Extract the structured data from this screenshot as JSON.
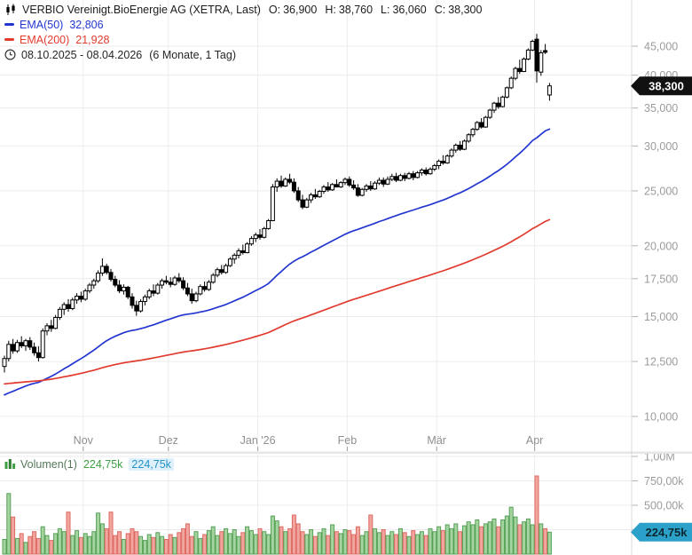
{
  "header": {
    "title": "VERBIO Vereinigt.BioEnergie AG (XETRA, Last)",
    "ohlc": {
      "o_label": "O:",
      "o": "36,900",
      "h_label": "H:",
      "h": "38,760",
      "l_label": "L:",
      "l": "36,060",
      "c_label": "C:",
      "c": "38,300"
    },
    "indicators": [
      {
        "name": "EMA(50)",
        "value": "32,806"
      },
      {
        "name": "EMA(200)",
        "value": "21,928"
      }
    ],
    "date_range": "08.10.2025 - 08.04.2026",
    "period": "(6 Monate, 1 Tag)"
  },
  "price_axis": {
    "last_price_label": "38,300",
    "tick_labels": [
      "45,000",
      "40,000",
      "35,000",
      "30,000",
      "25,000",
      "20,000",
      "17,500",
      "15,000",
      "12,500",
      "10,000"
    ]
  },
  "volume_panel": {
    "legend_name": "Volumen(1)",
    "legend_value1": "224,75k",
    "legend_value2": "224,75k",
    "last_volume_label": "224,75k",
    "tick_labels": [
      "1,00M",
      "750,00k",
      "500,00k"
    ]
  },
  "colors": {
    "ema50": "#2336cf",
    "ema200": "#e13b2f",
    "candle_stroke": "#000000",
    "candle_up_fill": "#ffffff",
    "candle_down_fill": "#000000",
    "volume_up_fill": "#a5d4a0",
    "volume_up_stroke": "#55a157",
    "volume_down_fill": "#f2a49e",
    "volume_down_stroke": "#dd6b62",
    "price_badge_bg": "#111111",
    "price_badge_text": "#ffffff",
    "volume_badge_bg": "#2ba0c8",
    "volume_badge_text": "#0b2830",
    "grid": "#ececec",
    "axis_line": "#d8d8d8",
    "axis_text": "#9b9b9b",
    "month_text": "#8f8f8f"
  },
  "chart_data": {
    "type": "candlestick",
    "instrument": "VERBIO Vereinigt.BioEnergie AG",
    "exchange": "XETRA",
    "date_range": "08.10.2025 - 08.04.2026",
    "interval": "1 Tag",
    "scale": "log",
    "last": {
      "open": 36.9,
      "high": 38.76,
      "low": 36.06,
      "close": 38.3
    },
    "ema": [
      {
        "period": 50,
        "last": 32.806,
        "k": 0.035,
        "seed": 10.85
      },
      {
        "period": 200,
        "last": 21.928,
        "k": 0.01,
        "seed": 11.4
      }
    ],
    "y_axis": {
      "ticks": [
        45,
        40,
        35,
        30,
        25,
        20,
        17.5,
        15,
        12.5,
        10
      ]
    },
    "volume_axis": {
      "ticks": [
        1000,
        750,
        500,
        250
      ]
    },
    "months": [
      {
        "label": "Nov",
        "day": 19
      },
      {
        "label": "Dez",
        "day": 39
      },
      {
        "label": "Jan '26",
        "day": 60
      },
      {
        "label": "Feb",
        "day": 81
      },
      {
        "label": "Mär",
        "day": 102
      },
      {
        "label": "Apr",
        "day": 125
      }
    ],
    "candles": [
      [
        12.25,
        12.8,
        11.95,
        12.65
      ],
      [
        12.65,
        13.6,
        12.5,
        13.4
      ],
      [
        13.4,
        13.7,
        12.9,
        13.05
      ],
      [
        13.05,
        13.65,
        12.95,
        13.5
      ],
      [
        13.5,
        13.85,
        13.2,
        13.32
      ],
      [
        13.32,
        13.7,
        13.05,
        13.6
      ],
      [
        13.6,
        13.8,
        13.1,
        13.25
      ],
      [
        13.25,
        13.5,
        12.8,
        12.95
      ],
      [
        12.95,
        13.3,
        12.5,
        12.7
      ],
      [
        12.7,
        14.3,
        12.65,
        14.15
      ],
      [
        14.15,
        14.6,
        13.9,
        14.45
      ],
      [
        14.45,
        14.8,
        14.1,
        14.3
      ],
      [
        14.3,
        15.1,
        14.25,
        14.95
      ],
      [
        14.95,
        15.6,
        14.8,
        15.45
      ],
      [
        15.45,
        15.9,
        15.1,
        15.75
      ],
      [
        15.75,
        16.1,
        15.3,
        15.5
      ],
      [
        15.5,
        16.2,
        15.4,
        16.05
      ],
      [
        16.05,
        16.5,
        15.8,
        16.3
      ],
      [
        16.3,
        16.6,
        15.9,
        16.1
      ],
      [
        16.1,
        16.8,
        16.0,
        16.65
      ],
      [
        16.65,
        17.2,
        16.5,
        17.05
      ],
      [
        17.05,
        17.5,
        16.8,
        17.35
      ],
      [
        17.35,
        18.1,
        17.2,
        17.9
      ],
      [
        17.9,
        19.0,
        17.7,
        18.4
      ],
      [
        18.4,
        18.6,
        17.8,
        17.95
      ],
      [
        17.95,
        18.2,
        17.3,
        17.45
      ],
      [
        17.45,
        17.7,
        16.9,
        17.05
      ],
      [
        17.05,
        17.4,
        16.5,
        16.65
      ],
      [
        16.65,
        17.1,
        16.4,
        16.9
      ],
      [
        16.9,
        17.0,
        16.1,
        16.25
      ],
      [
        16.25,
        16.5,
        15.5,
        15.7
      ],
      [
        15.7,
        16.0,
        15.05,
        15.35
      ],
      [
        15.35,
        16.1,
        15.25,
        15.95
      ],
      [
        15.95,
        16.4,
        15.7,
        16.25
      ],
      [
        16.25,
        16.8,
        16.1,
        16.65
      ],
      [
        16.65,
        17.1,
        16.3,
        16.5
      ],
      [
        16.5,
        17.2,
        16.4,
        17.05
      ],
      [
        17.05,
        17.5,
        16.8,
        17.35
      ],
      [
        17.35,
        17.7,
        17.1,
        17.25
      ],
      [
        17.25,
        17.6,
        16.9,
        17.1
      ],
      [
        17.1,
        17.7,
        17.0,
        17.55
      ],
      [
        17.55,
        17.9,
        17.2,
        17.35
      ],
      [
        17.35,
        17.6,
        16.7,
        16.85
      ],
      [
        16.85,
        17.2,
        16.3,
        16.45
      ],
      [
        16.45,
        16.8,
        15.8,
        16.0
      ],
      [
        16.0,
        16.6,
        15.9,
        16.45
      ],
      [
        16.45,
        17.1,
        16.35,
        16.95
      ],
      [
        16.95,
        17.3,
        16.6,
        16.75
      ],
      [
        16.75,
        17.4,
        16.65,
        17.25
      ],
      [
        17.25,
        17.9,
        17.15,
        17.75
      ],
      [
        17.75,
        18.3,
        17.6,
        18.15
      ],
      [
        18.15,
        18.5,
        17.8,
        17.95
      ],
      [
        17.95,
        18.6,
        17.85,
        18.45
      ],
      [
        18.45,
        19.1,
        18.35,
        18.95
      ],
      [
        18.95,
        19.4,
        18.6,
        19.25
      ],
      [
        19.25,
        19.8,
        19.0,
        19.6
      ],
      [
        19.6,
        20.1,
        19.3,
        19.45
      ],
      [
        19.45,
        20.3,
        19.4,
        20.15
      ],
      [
        20.15,
        20.8,
        20.0,
        20.6
      ],
      [
        20.6,
        21.1,
        20.3,
        20.9
      ],
      [
        20.9,
        21.4,
        20.5,
        20.7
      ],
      [
        20.7,
        21.6,
        20.6,
        21.45
      ],
      [
        21.45,
        22.3,
        21.35,
        22.15
      ],
      [
        22.15,
        25.7,
        22.1,
        25.4
      ],
      [
        25.4,
        26.3,
        24.9,
        26.0
      ],
      [
        26.0,
        26.6,
        25.3,
        25.5
      ],
      [
        25.5,
        26.4,
        25.4,
        26.2
      ],
      [
        26.2,
        26.8,
        25.7,
        25.9
      ],
      [
        25.9,
        26.3,
        24.8,
        25.0
      ],
      [
        25.0,
        25.4,
        23.9,
        24.1
      ],
      [
        24.1,
        24.6,
        23.2,
        23.4
      ],
      [
        23.4,
        24.3,
        23.3,
        24.1
      ],
      [
        24.1,
        24.8,
        23.8,
        24.6
      ],
      [
        24.6,
        25.2,
        24.2,
        24.4
      ],
      [
        24.4,
        25.1,
        24.3,
        24.95
      ],
      [
        24.95,
        25.6,
        24.7,
        25.4
      ],
      [
        25.4,
        25.9,
        24.9,
        25.1
      ],
      [
        25.1,
        25.8,
        25.0,
        25.65
      ],
      [
        25.65,
        26.2,
        25.35,
        25.4
      ],
      [
        25.4,
        26.0,
        25.3,
        25.85
      ],
      [
        25.85,
        26.4,
        25.6,
        26.2
      ],
      [
        26.2,
        26.5,
        25.4,
        25.6
      ],
      [
        25.6,
        26.1,
        25.1,
        25.3
      ],
      [
        25.3,
        25.7,
        24.4,
        24.55
      ],
      [
        24.55,
        25.3,
        24.45,
        25.15
      ],
      [
        25.15,
        25.7,
        24.9,
        25.5
      ],
      [
        25.5,
        26.0,
        25.0,
        25.2
      ],
      [
        25.2,
        26.0,
        25.1,
        25.8
      ],
      [
        25.8,
        26.4,
        25.6,
        26.1
      ],
      [
        26.1,
        26.4,
        25.4,
        25.7
      ],
      [
        25.7,
        26.5,
        25.6,
        26.2
      ],
      [
        26.2,
        26.8,
        26.0,
        26.5
      ],
      [
        26.5,
        26.9,
        25.9,
        26.1
      ],
      [
        26.1,
        26.8,
        26.0,
        26.6
      ],
      [
        26.6,
        26.9,
        26.0,
        26.3
      ],
      [
        26.3,
        27.0,
        26.2,
        26.8
      ],
      [
        26.8,
        27.1,
        26.1,
        26.4
      ],
      [
        26.4,
        27.1,
        26.3,
        26.9
      ],
      [
        26.9,
        27.4,
        26.6,
        27.2
      ],
      [
        27.2,
        27.5,
        26.6,
        26.8
      ],
      [
        26.8,
        27.5,
        26.7,
        27.3
      ],
      [
        27.3,
        27.9,
        27.1,
        27.7
      ],
      [
        27.7,
        28.4,
        27.3,
        28.2
      ],
      [
        28.2,
        28.9,
        27.8,
        28.0
      ],
      [
        28.0,
        29.0,
        27.9,
        28.8
      ],
      [
        28.8,
        29.7,
        28.6,
        29.5
      ],
      [
        29.5,
        30.3,
        29.2,
        30.1
      ],
      [
        30.1,
        30.6,
        29.4,
        29.6
      ],
      [
        29.6,
        30.8,
        29.5,
        30.6
      ],
      [
        30.6,
        31.6,
        30.4,
        31.4
      ],
      [
        31.4,
        32.3,
        31.1,
        32.1
      ],
      [
        32.1,
        33.2,
        31.9,
        33.0
      ],
      [
        33.0,
        33.6,
        32.2,
        32.4
      ],
      [
        32.4,
        33.9,
        32.3,
        33.7
      ],
      [
        33.7,
        34.9,
        33.5,
        34.7
      ],
      [
        34.7,
        35.9,
        34.3,
        35.7
      ],
      [
        35.7,
        36.6,
        34.9,
        35.2
      ],
      [
        35.2,
        36.8,
        35.1,
        36.6
      ],
      [
        36.6,
        38.2,
        36.4,
        38.0
      ],
      [
        38.0,
        39.8,
        37.8,
        39.5
      ],
      [
        39.5,
        41.4,
        39.2,
        41.1
      ],
      [
        41.1,
        42.6,
        40.2,
        40.6
      ],
      [
        40.6,
        43.0,
        40.5,
        42.7
      ],
      [
        42.7,
        44.6,
        42.5,
        44.3
      ],
      [
        44.3,
        46.2,
        44.1,
        45.9
      ],
      [
        46.3,
        47.3,
        38.8,
        40.7
      ],
      [
        40.5,
        44.3,
        39.9,
        43.8
      ],
      [
        44.2,
        45.4,
        43.6,
        43.9
      ],
      [
        36.9,
        38.76,
        36.06,
        38.3
      ]
    ],
    "volumes_k": [
      150,
      620,
      380,
      160,
      210,
      120,
      180,
      230,
      160,
      280,
      190,
      140,
      210,
      260,
      230,
      430,
      190,
      240,
      170,
      210,
      180,
      230,
      420,
      310,
      260,
      430,
      190,
      230,
      150,
      210,
      260,
      230,
      180,
      140,
      200,
      170,
      220,
      180,
      150,
      200,
      170,
      220,
      260,
      310,
      180,
      230,
      160,
      200,
      240,
      280,
      190,
      230,
      260,
      210,
      250,
      180,
      220,
      280,
      240,
      200,
      260,
      230,
      200,
      390,
      340,
      280,
      230,
      260,
      400,
      310,
      230,
      200,
      250,
      180,
      220,
      260,
      190,
      300,
      230,
      210,
      250,
      240,
      200,
      280,
      190,
      230,
      400,
      260,
      220,
      250,
      190,
      230,
      200,
      260,
      220,
      180,
      240,
      200,
      230,
      190,
      260,
      230,
      280,
      240,
      300,
      260,
      310,
      230,
      290,
      330,
      300,
      350,
      280,
      310,
      330,
      360,
      280,
      350,
      390,
      480,
      380,
      300,
      330,
      360,
      300,
      800,
      310,
      260,
      224.75
    ]
  }
}
